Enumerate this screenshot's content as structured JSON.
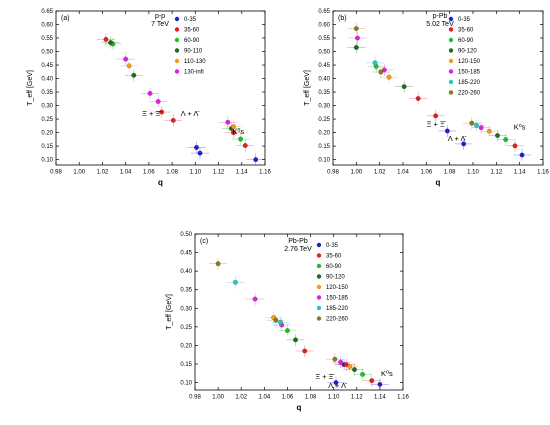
{
  "chart_data": [
    {
      "type": "scatter",
      "panel_label": "(a)",
      "system_label": "p-p",
      "energy_label": "7 TeV",
      "xlabel": "q",
      "ylabel": "T_eff [GeV]",
      "xlim": [
        0.98,
        1.16
      ],
      "ylim": [
        0.08,
        0.65
      ],
      "xticks": [
        "0.98",
        "1.00",
        "1.02",
        "1.04",
        "1.06",
        "1.08",
        "1.10",
        "1.12",
        "1.14",
        "1.16"
      ],
      "yticks": [
        "0.10",
        "0.15",
        "0.20",
        "0.25",
        "0.30",
        "0.35",
        "0.40",
        "0.45",
        "0.50",
        "0.55",
        "0.60",
        "0.65"
      ],
      "legend_position": "top-right",
      "annotations": [
        {
          "text": "Ξ + Ξ̄",
          "x": 1.062,
          "y": 0.262
        },
        {
          "text": "Λ + Λ̄",
          "x": 1.095,
          "y": 0.262
        },
        {
          "text": "K⁰s",
          "x": 1.137,
          "y": 0.194
        }
      ],
      "series": [
        {
          "name": "0-35",
          "color": "#1f1fd6",
          "points": [
            [
              1.101,
              0.145
            ],
            [
              1.104,
              0.124
            ],
            [
              1.152,
              0.1
            ]
          ]
        },
        {
          "name": "35-60",
          "color": "#e02020",
          "points": [
            [
              1.023,
              0.545
            ],
            [
              1.071,
              0.276
            ],
            [
              1.081,
              0.245
            ],
            [
              1.133,
              0.2
            ],
            [
              1.143,
              0.152
            ]
          ]
        },
        {
          "name": "60-90",
          "color": "#20c020",
          "points": [
            [
              1.029,
              0.528
            ],
            [
              1.139,
              0.176
            ]
          ]
        },
        {
          "name": "90-110",
          "color": "#1a6e1a",
          "points": [
            [
              1.027,
              0.533
            ],
            [
              1.047,
              0.412
            ],
            [
              1.131,
              0.215
            ]
          ]
        },
        {
          "name": "110-130",
          "color": "#f29a1f",
          "points": [
            [
              1.043,
              0.447
            ],
            [
              1.133,
              0.222
            ]
          ]
        },
        {
          "name": "130-infi",
          "color": "#e020e0",
          "points": [
            [
              1.04,
              0.472
            ],
            [
              1.061,
              0.345
            ],
            [
              1.068,
              0.315
            ],
            [
              1.128,
              0.238
            ]
          ]
        }
      ]
    },
    {
      "type": "scatter",
      "panel_label": "(b)",
      "system_label": "p-Pb",
      "energy_label": "5.02 TeV",
      "xlabel": "q",
      "ylabel": "T_eff [GeV]",
      "xlim": [
        0.98,
        1.16
      ],
      "ylim": [
        0.08,
        0.65
      ],
      "xticks": [
        "0.98",
        "1.00",
        "1.02",
        "1.04",
        "1.06",
        "1.08",
        "1.10",
        "1.12",
        "1.14",
        "1.16"
      ],
      "yticks": [
        "0.10",
        "0.15",
        "0.20",
        "0.25",
        "0.30",
        "0.35",
        "0.40",
        "0.45",
        "0.50",
        "0.55",
        "0.60",
        "0.65"
      ],
      "legend_position": "top-right",
      "annotations": [
        {
          "text": "Ξ + Ξ̄",
          "x": 1.068,
          "y": 0.222
        },
        {
          "text": "Λ + Λ̄",
          "x": 1.086,
          "y": 0.168
        },
        {
          "text": "K⁰s",
          "x": 1.14,
          "y": 0.211
        }
      ],
      "series": [
        {
          "name": "0-35",
          "color": "#1f1fd6",
          "points": [
            [
              1.078,
              0.206
            ],
            [
              1.092,
              0.158
            ],
            [
              1.142,
              0.117
            ]
          ]
        },
        {
          "name": "35-60",
          "color": "#e02020",
          "points": [
            [
              1.053,
              0.326
            ],
            [
              1.068,
              0.262
            ],
            [
              1.136,
              0.151
            ]
          ]
        },
        {
          "name": "60-90",
          "color": "#20c020",
          "points": [
            [
              1.017,
              0.445
            ],
            [
              1.128,
              0.174
            ]
          ]
        },
        {
          "name": "90-120",
          "color": "#1a6e1a",
          "points": [
            [
              1.0,
              0.515
            ],
            [
              1.041,
              0.37
            ],
            [
              1.121,
              0.189
            ]
          ]
        },
        {
          "name": "120-150",
          "color": "#f29a1f",
          "points": [
            [
              1.028,
              0.405
            ],
            [
              1.114,
              0.205
            ]
          ]
        },
        {
          "name": "150-185",
          "color": "#e020e0",
          "points": [
            [
              1.001,
              0.55
            ],
            [
              1.024,
              0.432
            ],
            [
              1.107,
              0.218
            ]
          ]
        },
        {
          "name": "185-220",
          "color": "#20c8c8",
          "points": [
            [
              1.016,
              0.458
            ],
            [
              1.103,
              0.227
            ]
          ]
        },
        {
          "name": "220-260",
          "color": "#8b7a1f",
          "points": [
            [
              1.0,
              0.585
            ],
            [
              1.021,
              0.424
            ],
            [
              1.099,
              0.235
            ]
          ]
        }
      ]
    },
    {
      "type": "scatter",
      "panel_label": "(c)",
      "system_label": "Pb-Pb",
      "energy_label": "2.76 TeV",
      "xlabel": "q",
      "ylabel": "T_eff [GeV]",
      "xlim": [
        0.98,
        1.16
      ],
      "ylim": [
        0.08,
        0.5
      ],
      "xticks": [
        "0.98",
        "1.00",
        "1.02",
        "1.04",
        "1.06",
        "1.08",
        "1.10",
        "1.12",
        "1.14",
        "1.16"
      ],
      "yticks": [
        "0.10",
        "0.15",
        "0.20",
        "0.25",
        "0.30",
        "0.35",
        "0.40",
        "0.45",
        "0.50"
      ],
      "legend_position": "top-right",
      "annotations": [
        {
          "text": "Ξ + Ξ̄",
          "x": 1.092,
          "y": 0.11
        },
        {
          "text": "Λ + Λ̄",
          "x": 1.103,
          "y": 0.085
        },
        {
          "text": "K⁰s",
          "x": 1.146,
          "y": 0.118
        }
      ],
      "series": [
        {
          "name": "0-35",
          "color": "#1f1fd6",
          "points": [
            [
              1.102,
              0.1
            ],
            [
              1.14,
              0.095
            ],
            [
              1.109,
              0.148
            ]
          ]
        },
        {
          "name": "35-60",
          "color": "#e02020",
          "points": [
            [
              1.075,
              0.185
            ],
            [
              1.111,
              0.148
            ],
            [
              1.133,
              0.105
            ]
          ]
        },
        {
          "name": "60-90",
          "color": "#20c020",
          "points": [
            [
              1.06,
              0.24
            ],
            [
              1.125,
              0.122
            ]
          ]
        },
        {
          "name": "90-120",
          "color": "#1a6e1a",
          "points": [
            [
              1.067,
              0.215
            ],
            [
              1.118,
              0.135
            ]
          ]
        },
        {
          "name": "120-150",
          "color": "#f29a1f",
          "points": [
            [
              1.048,
              0.275
            ],
            [
              1.114,
              0.143
            ]
          ]
        },
        {
          "name": "150-185",
          "color": "#e020e0",
          "points": [
            [
              1.032,
              0.325
            ],
            [
              1.055,
              0.255
            ],
            [
              1.106,
              0.155
            ]
          ]
        },
        {
          "name": "185-220",
          "color": "#20c8c8",
          "points": [
            [
              1.015,
              0.37
            ],
            [
              1.054,
              0.262
            ]
          ]
        },
        {
          "name": "220-260",
          "color": "#8b7a1f",
          "points": [
            [
              1.0,
              0.42
            ],
            [
              1.05,
              0.268
            ],
            [
              1.101,
              0.163
            ]
          ]
        }
      ]
    }
  ]
}
